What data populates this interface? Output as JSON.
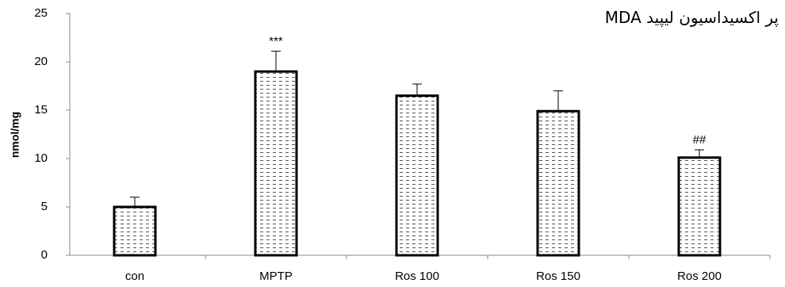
{
  "chart_data": {
    "type": "bar",
    "title": "پر اکسیداسیون لیپید MDA",
    "y_label": "nmol/mg",
    "categories": [
      "con",
      "MPTP",
      "Ros 100",
      "Ros 150",
      "Ros 200"
    ],
    "values": [
      5,
      19,
      16.5,
      14.9,
      10.1
    ],
    "errors": [
      1.0,
      2.1,
      1.2,
      2.1,
      0.8
    ],
    "significance": [
      null,
      "***",
      null,
      null,
      "##"
    ],
    "color": "#000000",
    "ylim": [
      0,
      25
    ],
    "yticks": [
      0,
      5,
      10,
      15,
      20,
      25
    ],
    "grid": false
  }
}
